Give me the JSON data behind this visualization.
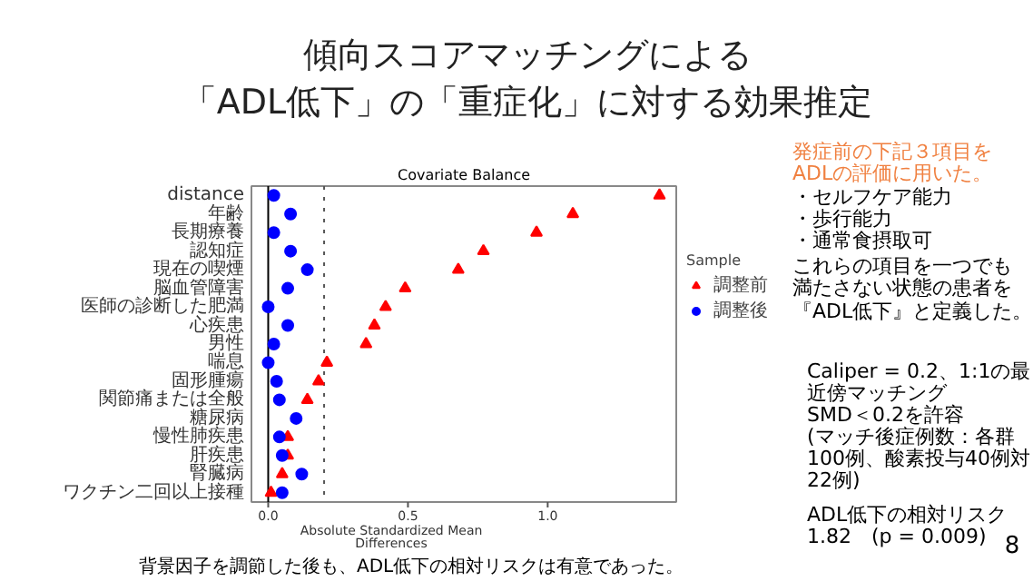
{
  "chart_data": {
    "type": "scatter",
    "orientation": "horizontal",
    "title": "傾向スコアマッチングによる",
    "subtitle": "「ADL低下」の「重症化」に対する効果推定",
    "xlabel": "Absolute Standardized Mean\nDifferences",
    "legend_title": "Sample",
    "categories": [
      "distance",
      "年齢",
      "長期療養",
      "認知症",
      "現在の喫煙",
      "脳血管障害",
      "医師の診断した肥満",
      "心疾患",
      "男性",
      "喘息",
      "固形腫瘍",
      "関節痛または全般",
      "糖尿病",
      "慢性肺疾患",
      "肝疾患",
      "腎臓病",
      "ワクチン二回以上接種"
    ],
    "series": [
      {
        "name": "調整前",
        "color": "#ff0000",
        "marker": "triangle",
        "values": [
          1.4,
          1.09,
          0.96,
          0.77,
          0.68,
          0.49,
          0.42,
          0.38,
          0.35,
          0.21,
          0.18,
          0.14,
          null,
          0.07,
          0.07,
          0.05,
          0.01
        ]
      },
      {
        "name": "調整後",
        "color": "#0000ff",
        "marker": "circle",
        "values": [
          0.02,
          0.08,
          0.02,
          0.08,
          0.14,
          0.07,
          0.0,
          0.07,
          0.02,
          0.0,
          0.03,
          0.04,
          0.1,
          0.04,
          0.05,
          0.12,
          0.05
        ]
      }
    ],
    "xlim": [
      -0.06,
      1.46
    ],
    "xticks": [
      {
        "value": 0,
        "label": "0.0"
      },
      0.5,
      {
        "value": 1,
        "label": "1.0"
      }
    ],
    "ref_lines": [
      {
        "axis": "x",
        "value": 0,
        "line_style": "solid",
        "color": "#000000"
      },
      {
        "axis": "x",
        "value": 0.2,
        "line_style": "dotted",
        "color": "#555555"
      }
    ],
    "legend": "right",
    "grid": false,
    "annotations": [
      "Covariate Balance",
      "発症前の下記３項目を",
      "ADLの評価に用いた。",
      "・セルフケア能力",
      "・歩行能力",
      "・通常食摂取可",
      "これらの項目を一つでも",
      "満たさない状態の患者を",
      "『ADL低下』と定義した。",
      "Caliper = 0.2、1:1の最",
      "近傍マッチング",
      "SMD＜0.2を許容",
      "(マッチ後症例数：各群",
      "100例、酸素投与40例対",
      "22例)",
      "ADL低下の相対リスク",
      "1.82　(p = 0.009)",
      "背景因子を調節した後も、ADL低下の相対リスクは有意であった。",
      "8"
    ]
  }
}
